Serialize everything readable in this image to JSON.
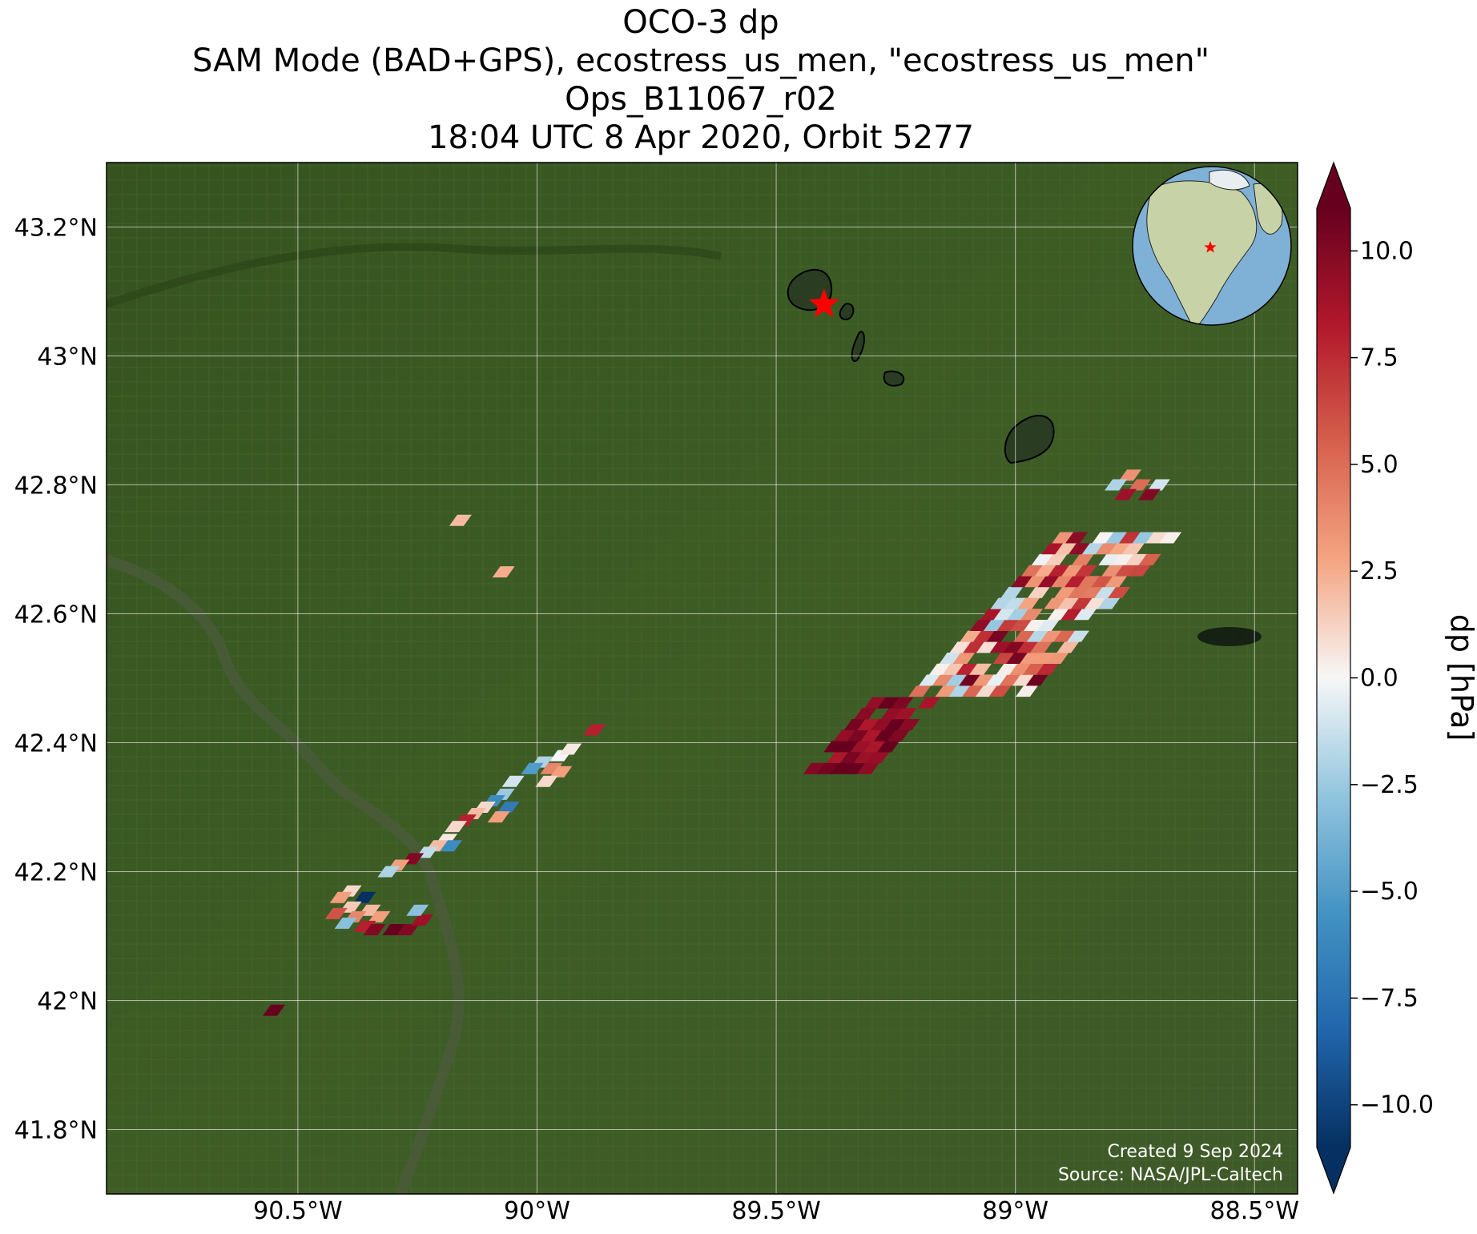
{
  "title": {
    "line1": "OCO-3 dp",
    "line2": "SAM Mode (BAD+GPS), ecostress_us_men, \"ecostress_us_men\"",
    "line3": "Ops_B11067_r02",
    "line4": "18:04 UTC 8 Apr 2020, Orbit 5277"
  },
  "map": {
    "lon_range": [
      -90.9,
      -88.41
    ],
    "lat_range": [
      41.7,
      43.3
    ],
    "lon_ticks": [
      {
        "value": -90.5,
        "label": "90.5°W"
      },
      {
        "value": -90.0,
        "label": "90°W"
      },
      {
        "value": -89.5,
        "label": "89.5°W"
      },
      {
        "value": -89.0,
        "label": "89°W"
      },
      {
        "value": -88.5,
        "label": "88.5°W"
      }
    ],
    "lat_ticks": [
      {
        "value": 43.2,
        "label": "43.2°N"
      },
      {
        "value": 43.0,
        "label": "43°N"
      },
      {
        "value": 42.8,
        "label": "42.8°N"
      },
      {
        "value": 42.6,
        "label": "42.6°N"
      },
      {
        "value": 42.4,
        "label": "42.4°N"
      },
      {
        "value": 42.2,
        "label": "42.2°N"
      },
      {
        "value": 42.0,
        "label": "42°N"
      },
      {
        "value": 41.8,
        "label": "41.8°N"
      }
    ],
    "grid": true,
    "basemap_colors": {
      "land": "#3a5a24",
      "land_dark": "#2e4a1e",
      "river": "#4a5a3a"
    },
    "target_marker": {
      "lon": -89.4,
      "lat": 43.08,
      "color": "#ff0000",
      "icon": "star-icon"
    },
    "credit_line1": "Created 9 Sep 2024",
    "credit_line2": "Source: NASA/JPL-Caltech"
  },
  "inset_globe": {
    "icon": "globe-icon",
    "ocean_color": "#7fb0d6",
    "land_color": "#c7d3a6",
    "marker_color": "#ff0000"
  },
  "colorbar": {
    "label": "dp [hPa]",
    "range": [
      -11,
      11
    ],
    "extend": "both",
    "colormap": "RdBu_r",
    "ticks": [
      {
        "value": 10,
        "label": "10.0"
      },
      {
        "value": 7.5,
        "label": "7.5"
      },
      {
        "value": 5,
        "label": "5.0"
      },
      {
        "value": 2.5,
        "label": "2.5"
      },
      {
        "value": 0,
        "label": "0.0"
      },
      {
        "value": -2.5,
        "label": "−2.5"
      },
      {
        "value": -5,
        "label": "−5.0"
      },
      {
        "value": -7.5,
        "label": "−7.5"
      },
      {
        "value": -10,
        "label": "−10.0"
      }
    ]
  },
  "chart_data": {
    "type": "heatmap",
    "title": "OCO-3 dp",
    "colorbar_label": "dp [hPa]",
    "clim": [
      -11,
      11
    ],
    "colormap": "RdBu_r",
    "points": [
      {
        "lon": -90.16,
        "lat": 42.745,
        "dp": 2.0
      },
      {
        "lon": -90.07,
        "lat": 42.665,
        "dp": 2.5
      },
      {
        "lon": -89.88,
        "lat": 42.42,
        "dp": 8.0
      },
      {
        "lon": -89.95,
        "lat": 42.38,
        "dp": 0.0
      },
      {
        "lon": -89.93,
        "lat": 42.39,
        "dp": 0.5
      },
      {
        "lon": -89.99,
        "lat": 42.37,
        "dp": -2.0
      },
      {
        "lon": -89.97,
        "lat": 42.36,
        "dp": 4.0
      },
      {
        "lon": -89.95,
        "lat": 42.355,
        "dp": 3.0
      },
      {
        "lon": -90.01,
        "lat": 42.36,
        "dp": -5.0
      },
      {
        "lon": -89.98,
        "lat": 42.34,
        "dp": 1.0
      },
      {
        "lon": -90.05,
        "lat": 42.34,
        "dp": -1.0
      },
      {
        "lon": -90.07,
        "lat": 42.32,
        "dp": -2.5
      },
      {
        "lon": -90.06,
        "lat": 42.3,
        "dp": -7.0
      },
      {
        "lon": -90.09,
        "lat": 42.31,
        "dp": -6.0
      },
      {
        "lon": -90.11,
        "lat": 42.3,
        "dp": 1.0
      },
      {
        "lon": -90.08,
        "lat": 42.285,
        "dp": 3.0
      },
      {
        "lon": -90.13,
        "lat": 42.29,
        "dp": 2.0
      },
      {
        "lon": -90.15,
        "lat": 42.28,
        "dp": 8.0
      },
      {
        "lon": -90.17,
        "lat": 42.27,
        "dp": 1.0
      },
      {
        "lon": -90.19,
        "lat": 42.25,
        "dp": 0.5
      },
      {
        "lon": -90.18,
        "lat": 42.24,
        "dp": -6.0
      },
      {
        "lon": -90.21,
        "lat": 42.24,
        "dp": 2.0
      },
      {
        "lon": -90.23,
        "lat": 42.23,
        "dp": -1.5
      },
      {
        "lon": -90.26,
        "lat": 42.22,
        "dp": 10.0
      },
      {
        "lon": -90.29,
        "lat": 42.21,
        "dp": 3.0
      },
      {
        "lon": -90.31,
        "lat": 42.2,
        "dp": -2.0
      },
      {
        "lon": -90.39,
        "lat": 42.17,
        "dp": 1.0
      },
      {
        "lon": -90.41,
        "lat": 42.16,
        "dp": 3.0
      },
      {
        "lon": -90.36,
        "lat": 42.16,
        "dp": -11.0
      },
      {
        "lon": -90.39,
        "lat": 42.145,
        "dp": 1.5
      },
      {
        "lon": -90.35,
        "lat": 42.14,
        "dp": 2.0
      },
      {
        "lon": -90.42,
        "lat": 42.135,
        "dp": 6.0
      },
      {
        "lon": -90.38,
        "lat": 42.13,
        "dp": 4.0
      },
      {
        "lon": -90.33,
        "lat": 42.13,
        "dp": 3.0
      },
      {
        "lon": -90.4,
        "lat": 42.12,
        "dp": -3.0
      },
      {
        "lon": -90.36,
        "lat": 42.115,
        "dp": 8.0
      },
      {
        "lon": -90.34,
        "lat": 42.11,
        "dp": 10.0
      },
      {
        "lon": -90.3,
        "lat": 42.11,
        "dp": 11.0
      },
      {
        "lon": -90.27,
        "lat": 42.11,
        "dp": 10.0
      },
      {
        "lon": -90.24,
        "lat": 42.125,
        "dp": 9.0
      },
      {
        "lon": -90.25,
        "lat": 42.14,
        "dp": -3.0
      },
      {
        "lon": -90.55,
        "lat": 41.985,
        "dp": 11.0
      },
      {
        "lon": -88.76,
        "lat": 42.815,
        "dp": 3.5
      },
      {
        "lon": -88.79,
        "lat": 42.8,
        "dp": -2.0
      },
      {
        "lon": -88.74,
        "lat": 42.8,
        "dp": 5.0
      },
      {
        "lon": -88.7,
        "lat": 42.8,
        "dp": -1.0
      },
      {
        "lon": -88.77,
        "lat": 42.785,
        "dp": 9.0
      },
      {
        "lon": -88.72,
        "lat": 42.785,
        "dp": 10.0
      }
    ],
    "swath_clusters": [
      {
        "lon_range": [
          -89.2,
          -88.65
        ],
        "lat_range": [
          42.48,
          42.72
        ],
        "dp_mean": 4.0
      },
      {
        "lon_range": [
          -89.42,
          -89.17
        ],
        "lat_range": [
          42.36,
          42.47
        ],
        "dp_mean": 10.0
      }
    ]
  }
}
